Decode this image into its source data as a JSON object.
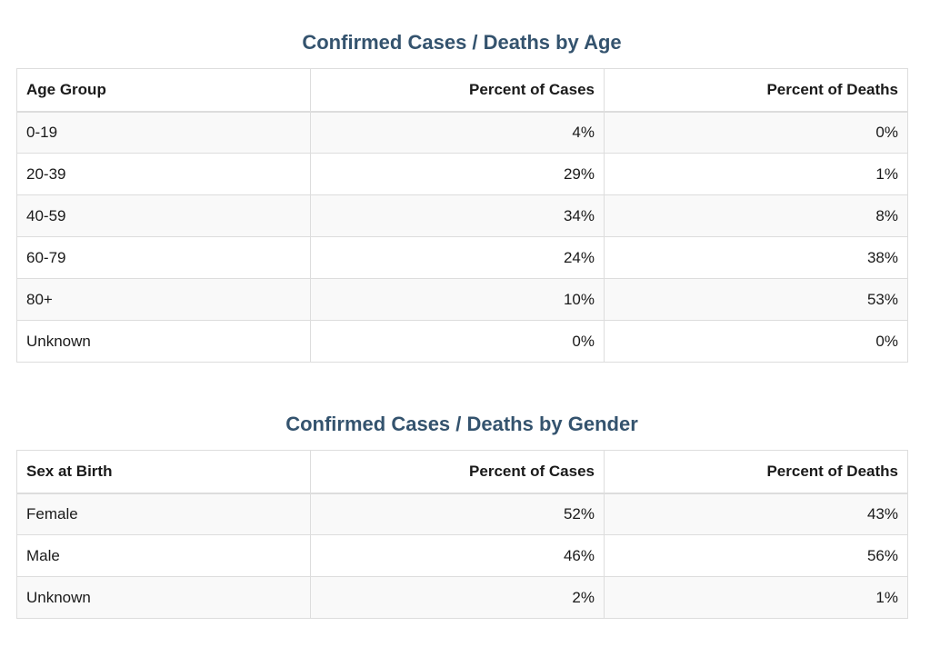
{
  "age_section": {
    "title": "Confirmed Cases / Deaths by Age",
    "headers": [
      "Age Group",
      "Percent of Cases",
      "Percent of Deaths"
    ],
    "rows": [
      [
        "0-19",
        "4%",
        "0%"
      ],
      [
        "20-39",
        "29%",
        "1%"
      ],
      [
        "40-59",
        "34%",
        "8%"
      ],
      [
        "60-79",
        "24%",
        "38%"
      ],
      [
        "80+",
        "10%",
        "53%"
      ],
      [
        "Unknown",
        "0%",
        "0%"
      ]
    ]
  },
  "gender_section": {
    "title": "Confirmed Cases / Deaths by Gender",
    "headers": [
      "Sex at Birth",
      "Percent of Cases",
      "Percent of Deaths"
    ],
    "rows": [
      [
        "Female",
        "52%",
        "43%"
      ],
      [
        "Male",
        "46%",
        "56%"
      ],
      [
        "Unknown",
        "2%",
        "1%"
      ]
    ]
  },
  "colors": {
    "title": "#34536e",
    "border": "#dddddd",
    "stripe": "#f9f9f9"
  }
}
